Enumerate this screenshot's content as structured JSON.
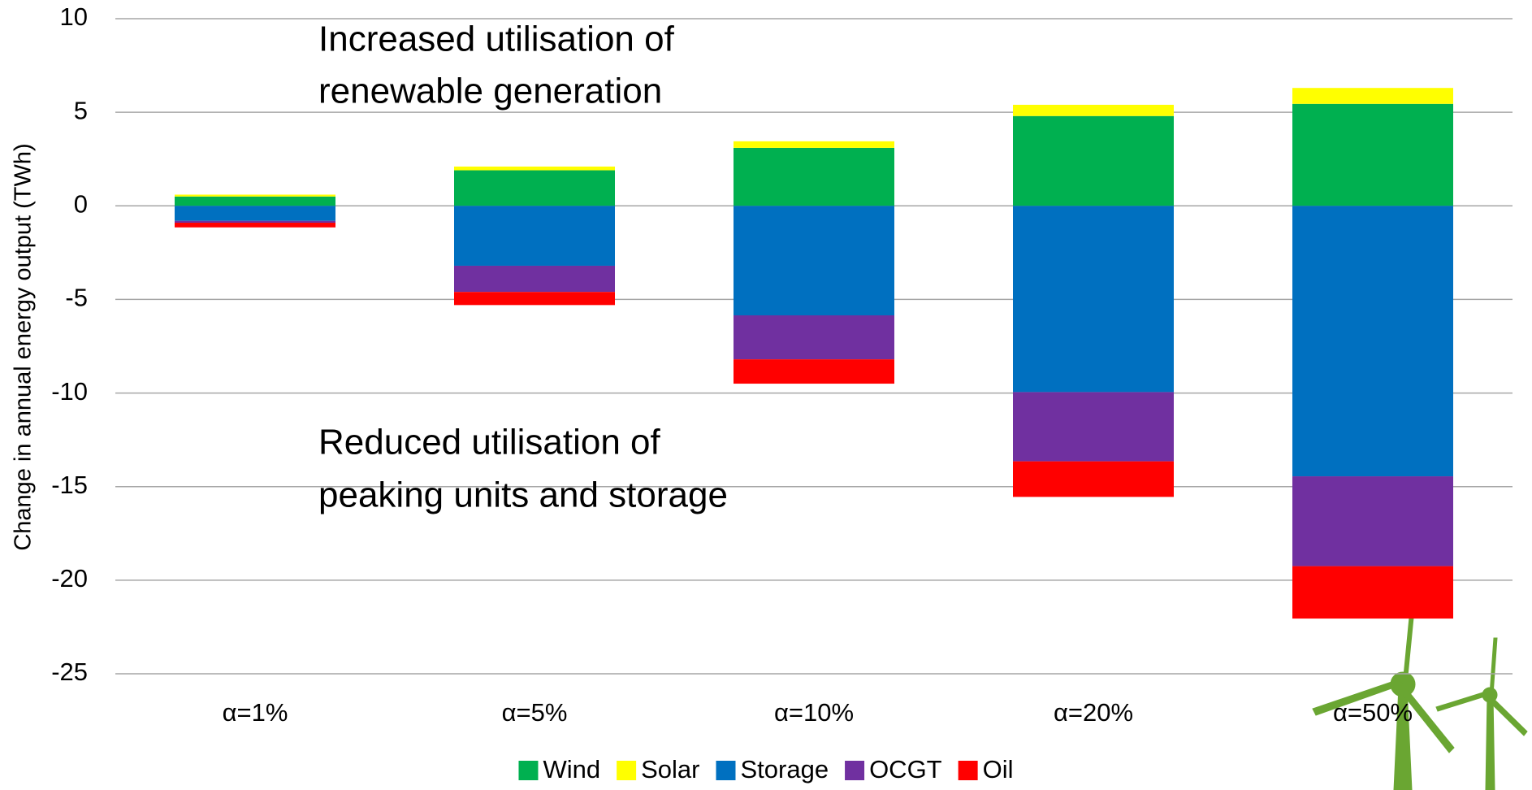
{
  "chart_data": {
    "type": "stacked_bar",
    "y_label": "Change in annual energy output (TWh)",
    "categories": [
      "α=1%",
      "α=5%",
      "α=10%",
      "α=20%",
      "α=50%"
    ],
    "series": [
      {
        "name": "Wind",
        "color": "#00b050",
        "values": [
          0.5,
          1.9,
          3.1,
          4.8,
          5.45
        ]
      },
      {
        "name": "Solar",
        "color": "#ffff00",
        "values": [
          0.1,
          0.2,
          0.35,
          0.6,
          0.85
        ]
      },
      {
        "name": "Storage",
        "color": "#0070c0",
        "values": [
          -0.8,
          -3.2,
          -5.85,
          -9.95,
          -14.45
        ]
      },
      {
        "name": "OCGT",
        "color": "#7030a0",
        "values": [
          -0.1,
          -1.4,
          -2.35,
          -3.7,
          -4.8
        ]
      },
      {
        "name": "Oil",
        "color": "#ff0000",
        "values": [
          -0.25,
          -0.7,
          -1.3,
          -1.9,
          -2.8
        ]
      }
    ],
    "annotations": [
      {
        "lines": [
          "Increased utilisation of",
          "renewable generation"
        ]
      },
      {
        "lines": [
          "Reduced utilisation of",
          "peaking units and storage"
        ]
      }
    ],
    "ylim": [
      -25,
      10
    ],
    "yticks": [
      -25,
      -20,
      -15,
      -10,
      -5,
      0,
      5,
      10
    ],
    "grid": true,
    "legend": "bottom"
  }
}
